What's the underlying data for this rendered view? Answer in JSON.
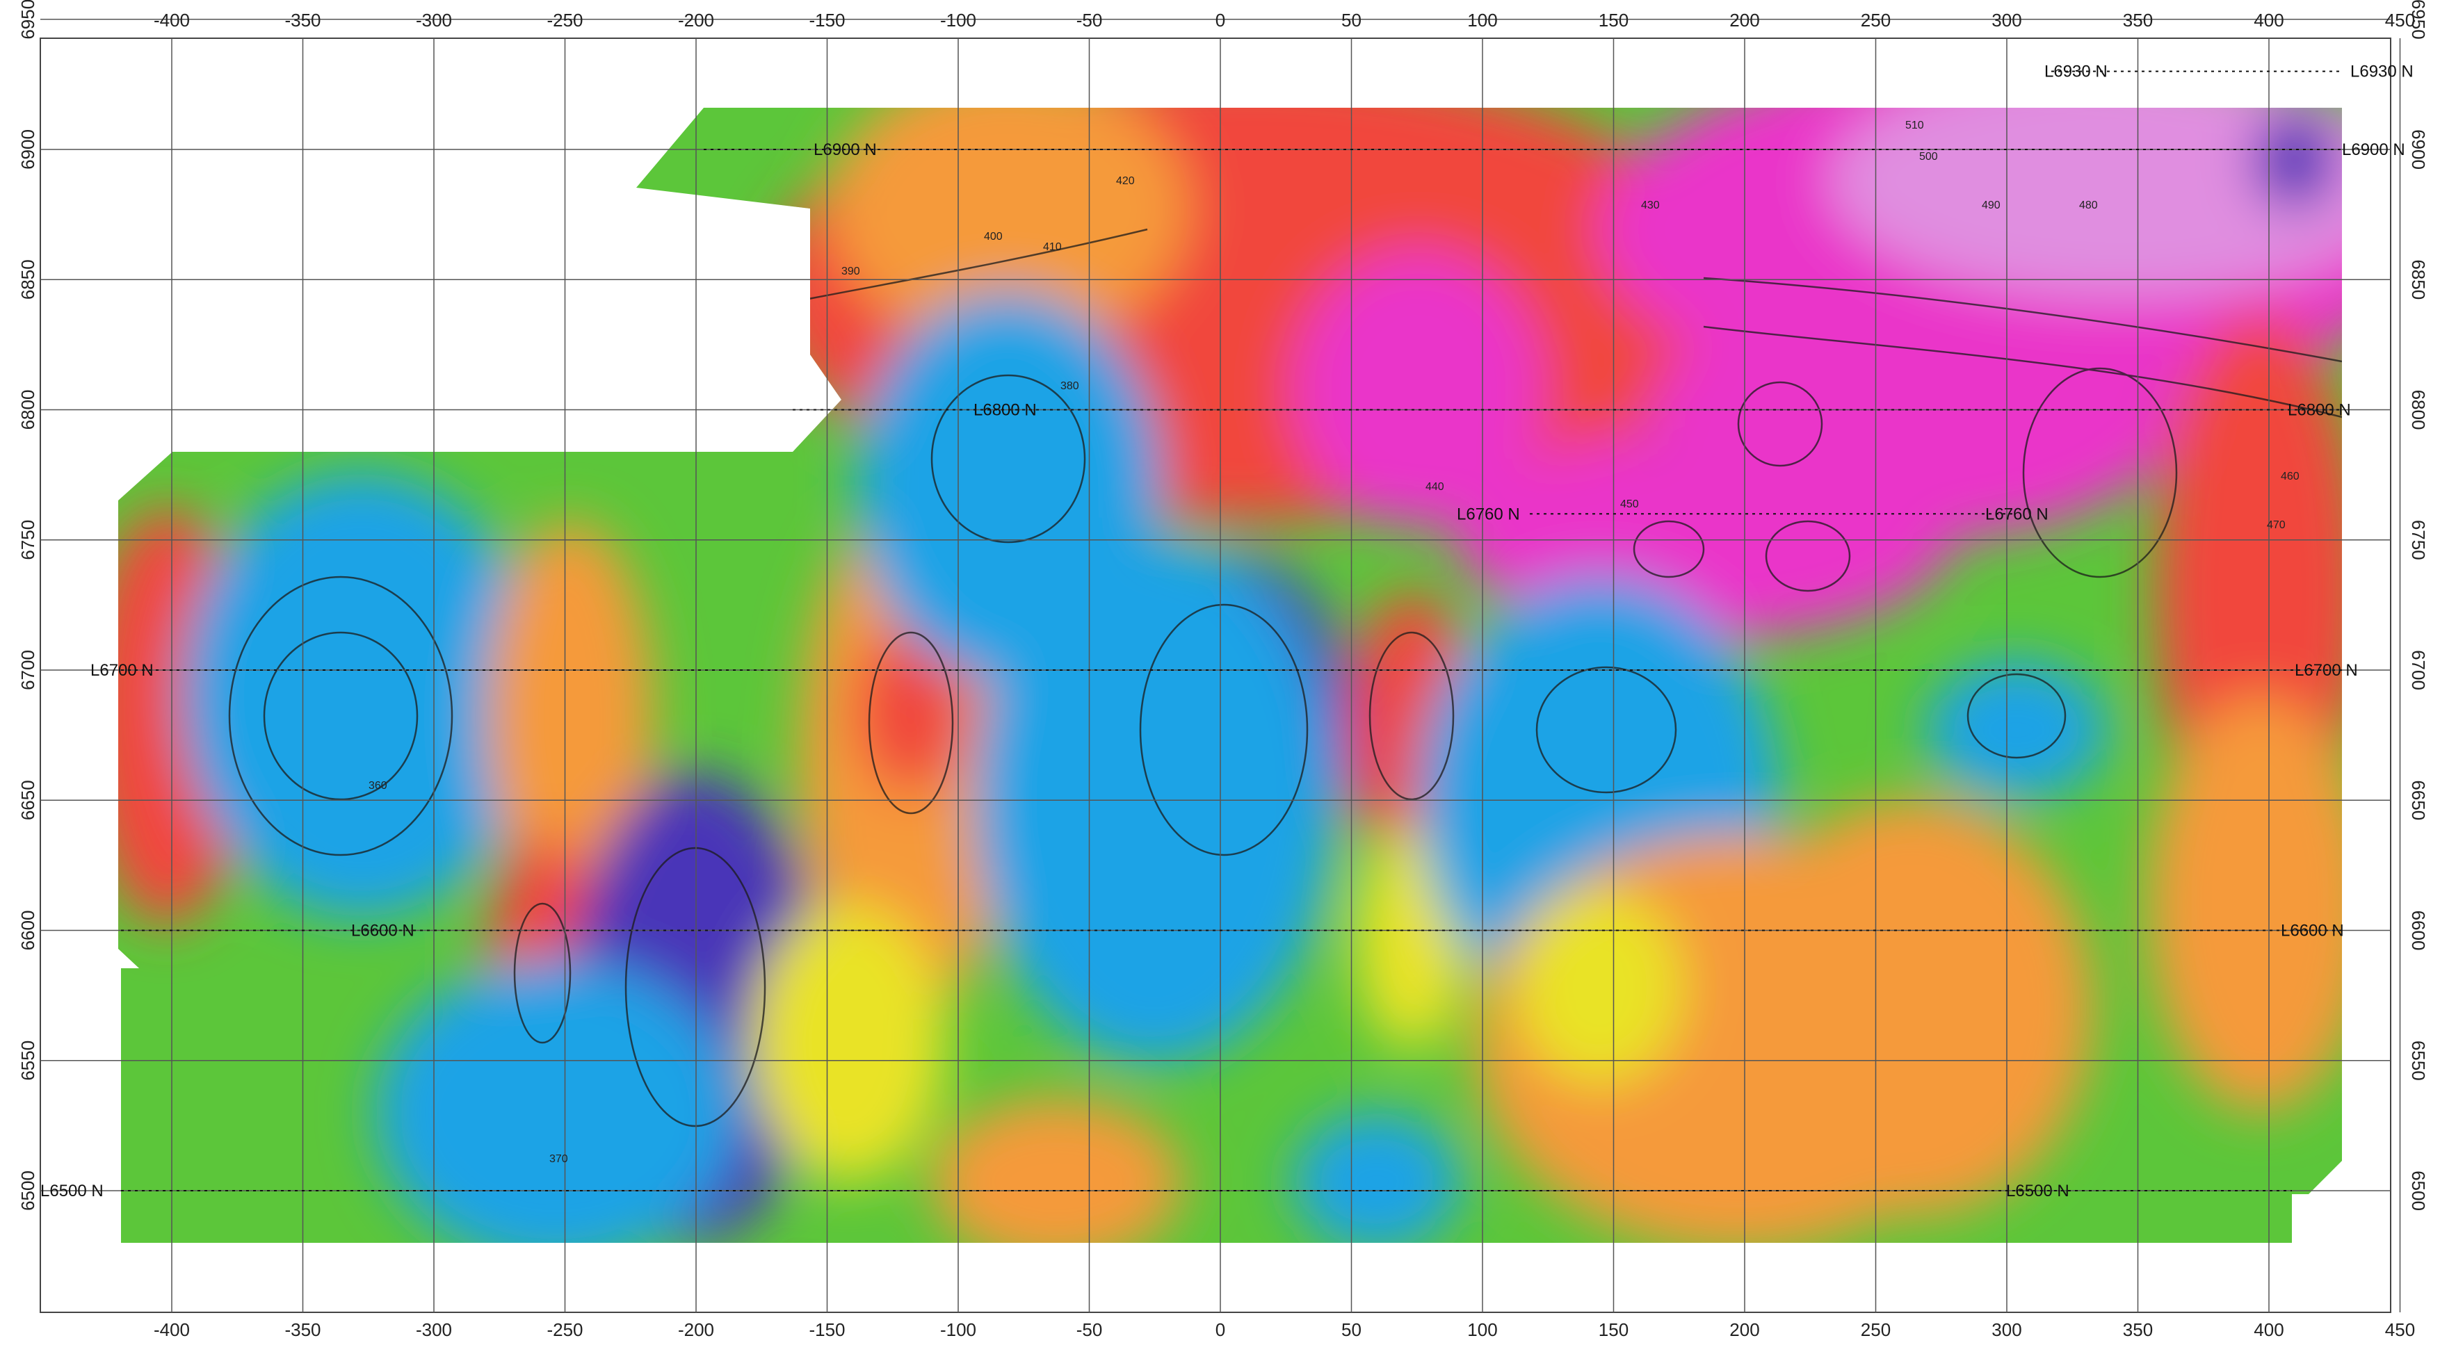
{
  "map": {
    "x_axis": {
      "range": [
        -450,
        450
      ],
      "ticks": [
        -400,
        -350,
        -300,
        -250,
        -200,
        -150,
        -100,
        -50,
        0,
        50,
        100,
        150,
        200,
        250,
        300,
        350,
        400,
        450
      ]
    },
    "y_axis": {
      "range": [
        6490,
        6960
      ],
      "ticks": [
        6500,
        6550,
        6600,
        6650,
        6700,
        6750,
        6800,
        6850,
        6900,
        6950
      ]
    },
    "survey_lines": [
      {
        "northing": 6930,
        "label_left": "L6930 N",
        "label_right": "L6930 N"
      },
      {
        "northing": 6900,
        "label_left": "L6900 N",
        "label_right": "L6900 N"
      },
      {
        "northing": 6800,
        "label_left": "L6800 N",
        "label_right": "L6800 N"
      },
      {
        "northing": 6760,
        "label_left": "L6760 N",
        "label_right": "L6760 N"
      },
      {
        "northing": 6700,
        "label_left": "L6700 N",
        "label_right": "L6700 N"
      },
      {
        "northing": 6600,
        "label_left": "L6600 N",
        "label_right": "L6600 N"
      },
      {
        "northing": 6500,
        "label_left": "L6500 N",
        "label_right": "L6500 N"
      }
    ],
    "contour_labels": [
      "390",
      "400",
      "410",
      "420",
      "430",
      "440",
      "450",
      "460",
      "470",
      "480",
      "490",
      "500",
      "510",
      "380",
      "370",
      "360"
    ],
    "colors": {
      "purple": "#4a36b8",
      "blue": "#1fa3e6",
      "cyan": "#2ec8e6",
      "green": "#5cc63a",
      "yellow": "#e9e325",
      "orange": "#f59a3a",
      "red": "#f1463e",
      "magenta": "#ea35c9",
      "pink": "#e08ee0"
    }
  }
}
